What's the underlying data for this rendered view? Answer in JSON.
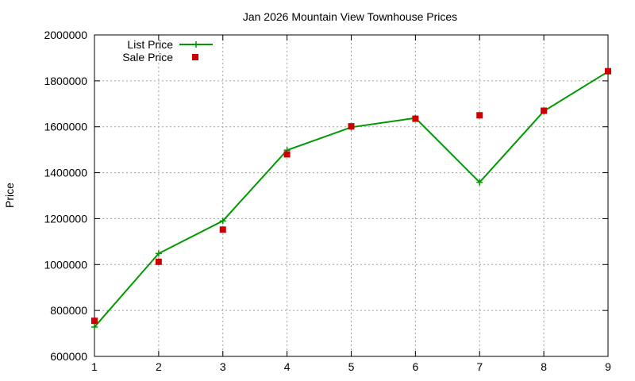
{
  "chart_data": {
    "type": "line",
    "title": "Jan 2026 Mountain View Townhouse Prices",
    "xlabel": "",
    "ylabel": "Price",
    "x": [
      1,
      2,
      3,
      4,
      5,
      6,
      7,
      8,
      9
    ],
    "xlim": [
      1,
      9
    ],
    "ylim": [
      600000,
      2000000
    ],
    "xticks": [
      1,
      2,
      3,
      4,
      5,
      6,
      7,
      8,
      9
    ],
    "yticks": [
      600000,
      800000,
      1000000,
      1200000,
      1400000,
      1600000,
      1800000,
      2000000
    ],
    "grid": true,
    "legend_position": "top-left",
    "series": [
      {
        "name": "List Price",
        "style": "linespoints",
        "marker": "plus",
        "color": "#009900",
        "values": [
          728000,
          1048000,
          1190000,
          1498000,
          1598000,
          1638000,
          1358000,
          1668000,
          1840000
        ]
      },
      {
        "name": "Sale Price",
        "style": "points",
        "marker": "square",
        "color": "#cc0000",
        "values": [
          755000,
          1012000,
          1152000,
          1480000,
          1602000,
          1635000,
          1650000,
          1670000,
          1842000
        ]
      }
    ]
  }
}
